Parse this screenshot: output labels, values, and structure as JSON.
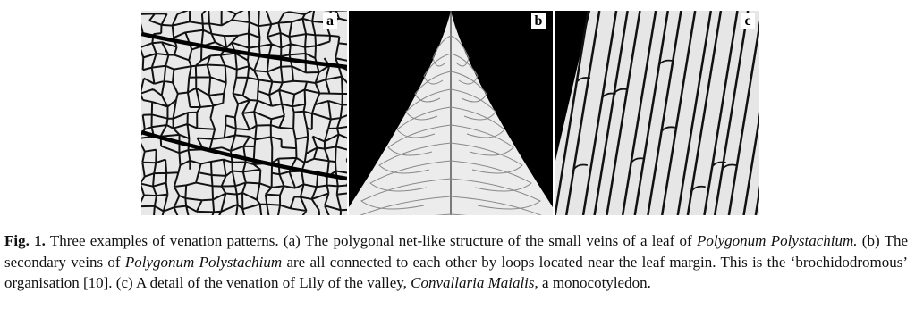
{
  "figure": {
    "panels": [
      "a",
      "b",
      "c"
    ],
    "caption": {
      "label": "Fig. 1.",
      "parts": [
        " Three examples of venation patterns. (a) The polygonal net-like structure of the small veins of a leaf of ",
        "Polygonum Polystachium.",
        " (b) The secondary veins of ",
        "Polygonum Polystachium",
        " are all connected to each other by loops located near the leaf margin. This is the ‘brochidodromous’ organisation [10]. (c) A detail of the venation of Lily of the valley, ",
        "Convallaria Maialis",
        ", a monocotyledon."
      ]
    }
  }
}
